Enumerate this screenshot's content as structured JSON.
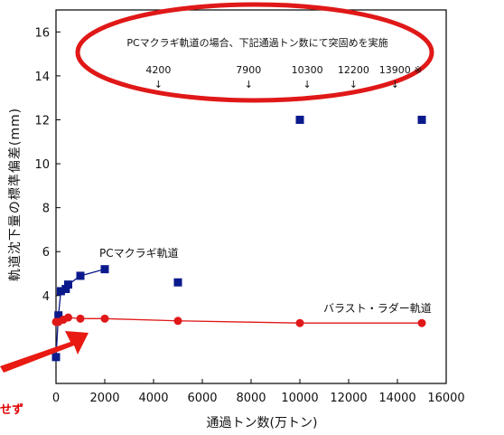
{
  "chart_data": {
    "type": "scatter",
    "title": "",
    "xlabel": "通過トン数(万トン)",
    "ylabel": "軌道沈下量の標準偏差(mm)",
    "xlim": [
      0,
      16000
    ],
    "ylim": [
      0,
      17
    ],
    "xticks": [
      0,
      2000,
      4000,
      6000,
      8000,
      10000,
      12000,
      14000,
      16000
    ],
    "yticks": [
      4,
      6,
      8,
      10,
      12,
      14,
      16
    ],
    "grid": false,
    "series": [
      {
        "name": "PCマクラギ軌道",
        "color": "#0a1a8c",
        "marker": "square",
        "x": [
          0,
          100,
          200,
          400,
          500,
          1000,
          2000,
          5000,
          10000,
          15000
        ],
        "y": [
          1.2,
          3.1,
          4.2,
          4.3,
          4.5,
          4.9,
          5.2,
          4.6,
          12.0,
          12.0
        ],
        "connected_points": 7
      },
      {
        "name": "バラスト・ラダー軌道",
        "color": "#e01818",
        "marker": "circle",
        "x": [
          0,
          100,
          300,
          500,
          1000,
          2000,
          5000,
          10000,
          15000
        ],
        "y": [
          2.8,
          2.8,
          2.9,
          3.0,
          2.95,
          2.95,
          2.85,
          2.75,
          2.75
        ],
        "connected_points": 9
      }
    ],
    "annotation": {
      "text": "PCマクラギ軌道の場合、下記通過トン数にて突固めを実施",
      "markers": [
        {
          "x": 4200,
          "label": "4200"
        },
        {
          "x": 7900,
          "label": "7900"
        },
        {
          "x": 10300,
          "label": "10300"
        },
        {
          "x": 12200,
          "label": "12200"
        },
        {
          "x": 13900,
          "label": "13900"
        }
      ],
      "suffix": "※",
      "arrow_glyph": "↓"
    },
    "overlay_text": "せず",
    "accent_color": "#e01818"
  }
}
